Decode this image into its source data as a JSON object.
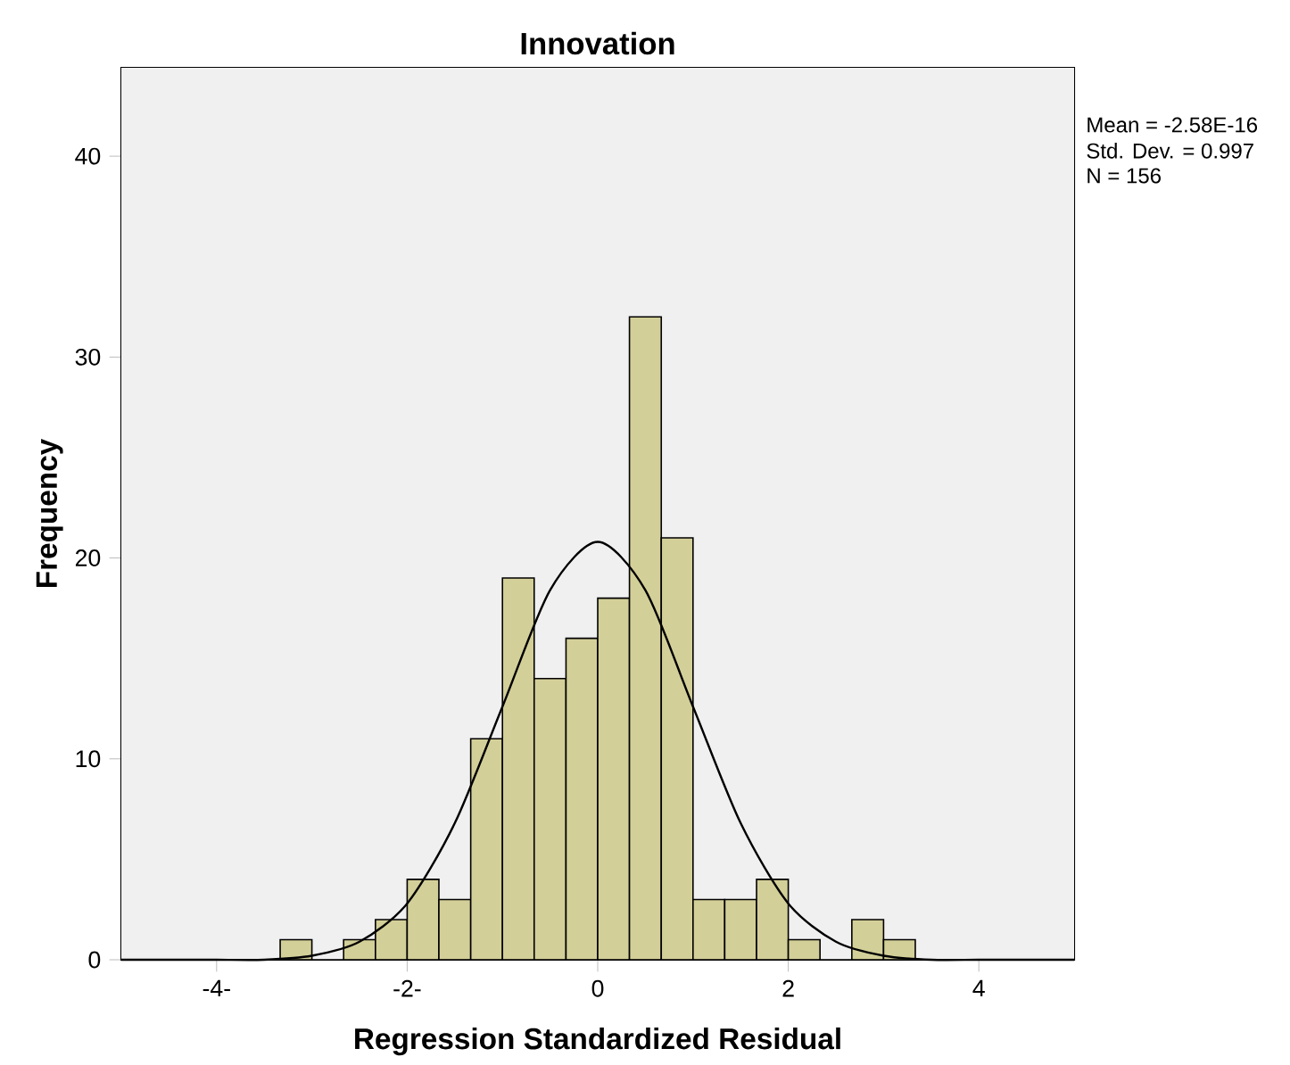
{
  "chart_data": {
    "type": "histogram",
    "title": "Innovation",
    "xlabel": "Regression Standardized Residual",
    "ylabel": "Frequency",
    "bins": [
      -3.333,
      -3.0,
      -2.667,
      -2.333,
      -2.0,
      -1.667,
      -1.333,
      -1.0,
      -0.667,
      -0.333,
      0.0,
      0.333,
      0.667,
      1.0,
      1.333,
      1.667,
      2.0,
      2.333,
      2.667,
      3.0,
      3.333
    ],
    "values": [
      1,
      0,
      1,
      2,
      4,
      3,
      11,
      19,
      14,
      16,
      18,
      32,
      21,
      3,
      3,
      4,
      1,
      0,
      2,
      1
    ],
    "color": "#d3cf98",
    "series": [
      {
        "type": "line",
        "color": "#000000",
        "x": [
          -5,
          -4.5,
          -4,
          -3.5,
          -3,
          -2.5,
          -2,
          -1.5,
          -1,
          -0.5,
          0,
          0.5,
          1,
          1.5,
          2,
          2.5,
          3,
          3.5,
          4,
          4.5,
          5
        ],
        "values": [
          0,
          0,
          0,
          0,
          0.2,
          0.9,
          2.8,
          6.8,
          12.6,
          18.4,
          20.8,
          18.4,
          12.6,
          6.8,
          2.8,
          0.9,
          0.2,
          0,
          0,
          0,
          0
        ]
      }
    ],
    "xlim": [
      -5,
      5
    ],
    "ylim": [
      0,
      44.4
    ],
    "xticks": [
      {
        "value": -4,
        "label": "-4-"
      },
      {
        "value": -2,
        "label": "-2-"
      },
      0,
      2,
      4
    ],
    "yticks": [
      0,
      10,
      20,
      30,
      40
    ],
    "marker": "none",
    "line_style": "solid",
    "annotations": [
      "Mean = -2.58E-16",
      "Std. Dev. = 0.997",
      "N = 156"
    ]
  }
}
